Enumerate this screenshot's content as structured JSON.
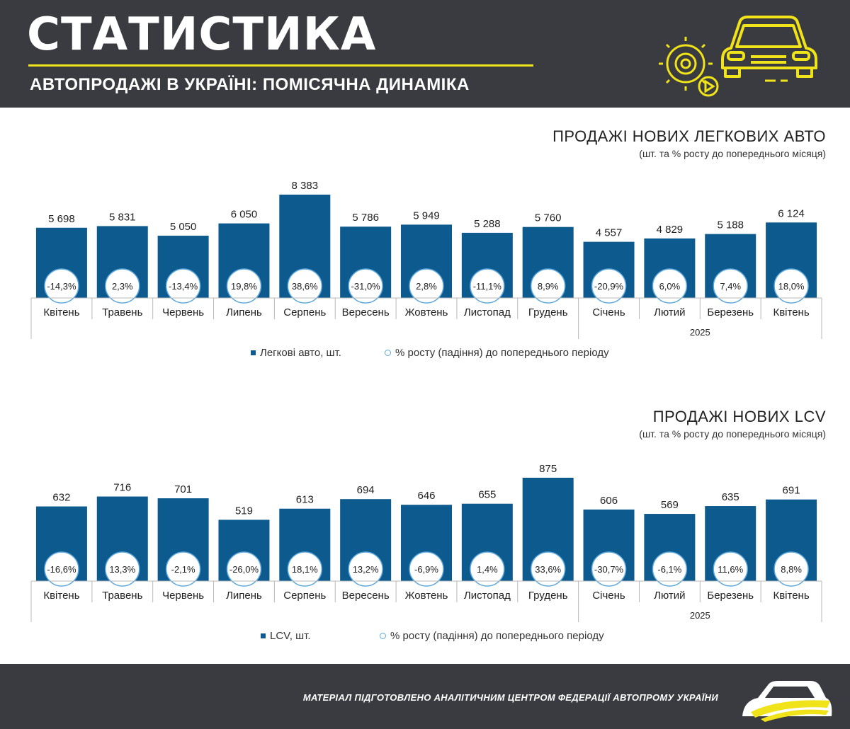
{
  "header": {
    "title": "СТАТИСТИКА",
    "subtitle": "АВТОПРОДАЖІ В УКРАЇНІ: ПОМІСЯЧНА ДИНАМІКА",
    "accent_color": "#f0e31a",
    "icons": [
      "gear-icon",
      "play-icon",
      "car-icon"
    ]
  },
  "colors": {
    "bar": "#0d5a8e",
    "circle_border": "#5ba7dc",
    "background_dark": "#3a3b40"
  },
  "chart_data": [
    {
      "type": "bar",
      "title": "ПРОДАЖІ НОВИХ ЛЕГКОВИХ АВТО",
      "subtitle": "(шт. та % росту до попереднього місяця)",
      "categories": [
        "Квітень",
        "Травень",
        "Червень",
        "Липень",
        "Серпень",
        "Вересень",
        "Жовтень",
        "Листопад",
        "Грудень",
        "Січень",
        "Лютий",
        "Березень",
        "Квітень"
      ],
      "group_label": "2025",
      "values": [
        5698,
        5831,
        5050,
        6050,
        8383,
        5786,
        5949,
        5288,
        5760,
        4557,
        4829,
        5188,
        6124
      ],
      "value_labels": [
        "5 698",
        "5 831",
        "5 050",
        "6 050",
        "8 383",
        "5 786",
        "5 949",
        "5 288",
        "5 760",
        "4 557",
        "4 829",
        "5 188",
        "6 124"
      ],
      "growth": [
        "-14,3%",
        "2,3%",
        "-13,4%",
        "19,8%",
        "38,6%",
        "-31,0%",
        "2,8%",
        "-11,1%",
        "8,9%",
        "-20,9%",
        "6,0%",
        "7,4%",
        "18,0%"
      ],
      "legend": {
        "bars": "Легкові авто, шт.",
        "circles": "% росту  (падіння) до попереднього періоду"
      },
      "series": [
        {
          "name": "Легкові авто, шт.",
          "values": [
            5698,
            5831,
            5050,
            6050,
            8383,
            5786,
            5949,
            5288,
            5760,
            4557,
            4829,
            5188,
            6124
          ]
        },
        {
          "name": "% росту  (падіння) до попереднього періоду",
          "values": [
            -14.3,
            2.3,
            -13.4,
            19.8,
            38.6,
            -31.0,
            2.8,
            -11.1,
            8.9,
            -20.9,
            6.0,
            7.4,
            18.0
          ]
        }
      ]
    },
    {
      "type": "bar",
      "title": "ПРОДАЖІ НОВИХ  LCV",
      "subtitle": "(шт. та % росту до попереднього місяця)",
      "categories": [
        "Квітень",
        "Травень",
        "Червень",
        "Липень",
        "Серпень",
        "Вересень",
        "Жовтень",
        "Листопад",
        "Грудень",
        "Січень",
        "Лютий",
        "Березень",
        "Квітень"
      ],
      "group_label": "2025",
      "values": [
        632,
        716,
        701,
        519,
        613,
        694,
        646,
        655,
        875,
        606,
        569,
        635,
        691
      ],
      "value_labels": [
        "632",
        "716",
        "701",
        "519",
        "613",
        "694",
        "646",
        "655",
        "875",
        "606",
        "569",
        "635",
        "691"
      ],
      "growth": [
        "-16,6%",
        "13,3%",
        "-2,1%",
        "-26,0%",
        "18,1%",
        "13,2%",
        "-6,9%",
        "1,4%",
        "33,6%",
        "-30,7%",
        "-6,1%",
        "11,6%",
        "8,8%"
      ],
      "legend": {
        "bars": "LCV, шт.",
        "circles": "% росту  (падіння) до попереднього періоду"
      },
      "series": [
        {
          "name": "LCV, шт.",
          "values": [
            632,
            716,
            701,
            519,
            613,
            694,
            646,
            655,
            875,
            606,
            569,
            635,
            691
          ]
        },
        {
          "name": "% росту  (падіння) до попереднього періоду",
          "values": [
            -16.6,
            13.3,
            -2.1,
            -26.0,
            18.1,
            13.2,
            -6.9,
            1.4,
            33.6,
            -30.7,
            -6.1,
            11.6,
            8.8
          ]
        }
      ]
    }
  ],
  "footer": {
    "text": "МАТЕРІАЛ ПІДГОТОВЛЕНО АНАЛІТИЧНИМ ЦЕНТРОМ ФЕДЕРАЦІЇ АВТОПРОМУ УКРАЇНИ"
  }
}
